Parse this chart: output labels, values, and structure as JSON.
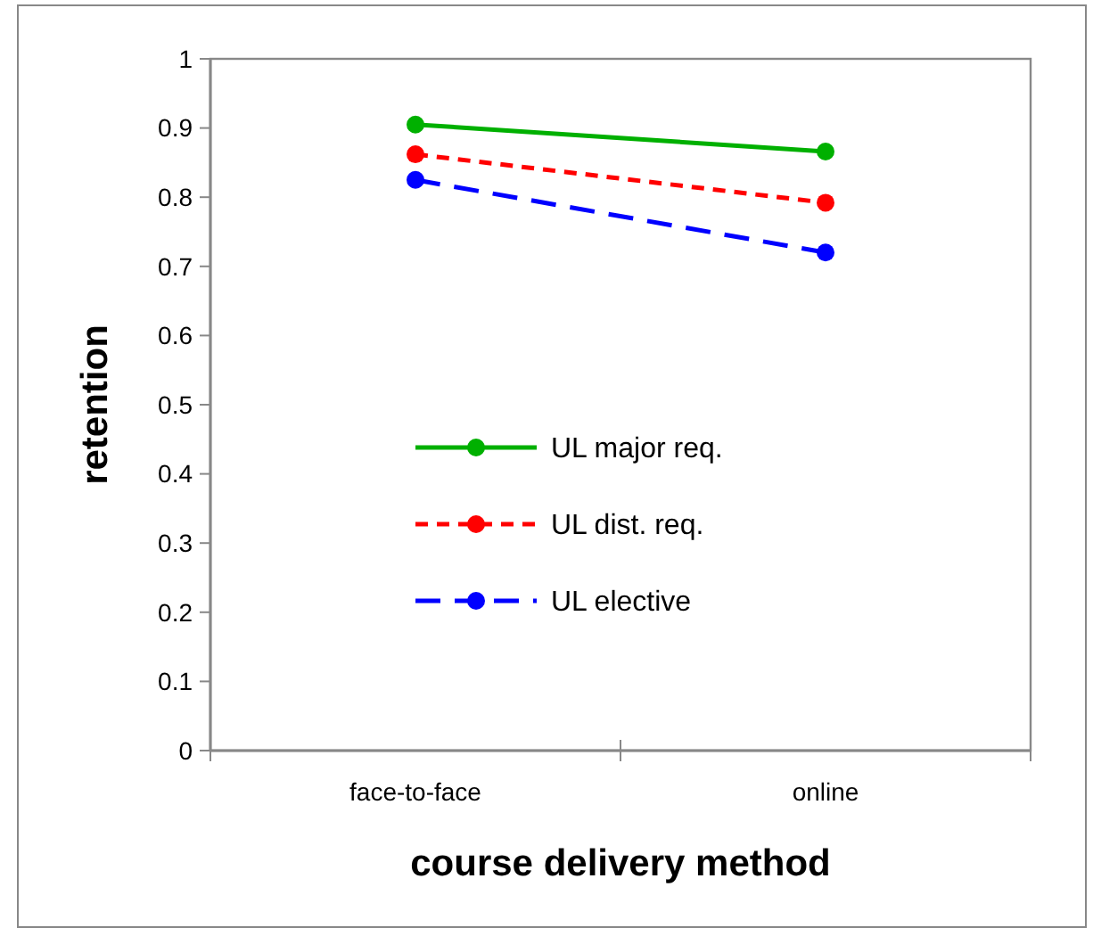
{
  "chart_data": {
    "type": "line",
    "xlabel": "course delivery method",
    "ylabel": "retention",
    "categories": [
      "face-to-face",
      "online"
    ],
    "series": [
      {
        "name": "UL major req.",
        "color": "#00b000",
        "values": [
          0.905,
          0.866
        ],
        "line_style": "solid"
      },
      {
        "name": "UL dist. req.",
        "color": "#ff0000",
        "values": [
          0.862,
          0.792
        ],
        "line_style": "dashed"
      },
      {
        "name": "UL elective",
        "color": "#0000ff",
        "values": [
          0.825,
          0.72
        ],
        "line_style": "longdashed"
      }
    ],
    "ylim": [
      0,
      1
    ],
    "yticks": [
      0,
      0.1,
      0.2,
      0.3,
      0.4,
      0.5,
      0.6,
      0.7,
      0.8,
      0.9,
      1
    ],
    "grid": false,
    "legend": "bottom left",
    "marker": "circle"
  }
}
